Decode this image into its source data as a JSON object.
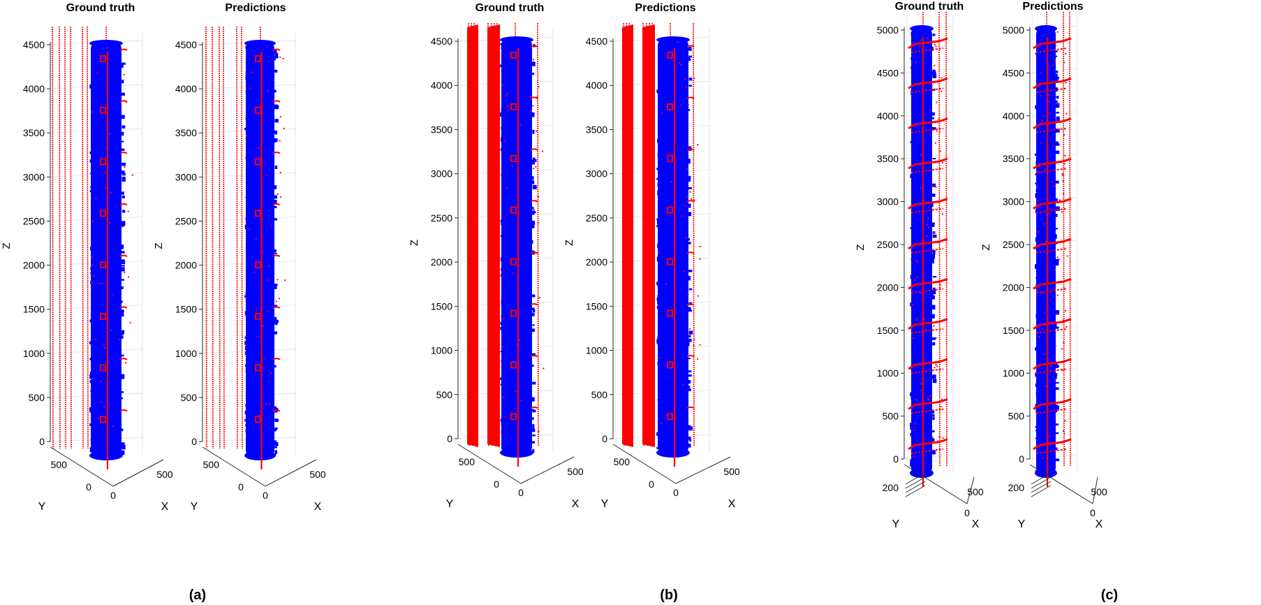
{
  "colors": {
    "background": "#ffffff",
    "column_points": "#0000ff",
    "edge_points": "#ff0000",
    "axis": "#262626",
    "grid": "#dcdcdc"
  },
  "chart_data": [
    {
      "type": "scatter3d",
      "group": "(a)",
      "title": "Ground truth",
      "xlabel": "X",
      "ylabel": "Y",
      "zlabel": "Z",
      "z_ticks": [
        0,
        500,
        1000,
        1500,
        2000,
        2500,
        3000,
        3500,
        4000,
        4500
      ],
      "x_ticks": [
        0,
        500
      ],
      "y_ticks": [
        0,
        500
      ],
      "zlim": [
        0,
        4600
      ],
      "series": [
        {
          "color": "blue"
        },
        {
          "color": "red"
        }
      ]
    },
    {
      "type": "scatter3d",
      "group": "(a)",
      "title": "Predictions",
      "xlabel": "X",
      "ylabel": "Y",
      "zlabel": "Z",
      "z_ticks": [
        0,
        500,
        1000,
        1500,
        2000,
        2500,
        3000,
        3500,
        4000,
        4500
      ],
      "x_ticks": [
        0,
        500
      ],
      "y_ticks": [
        0,
        500
      ],
      "zlim": [
        0,
        4600
      ],
      "series": [
        {
          "color": "blue"
        },
        {
          "color": "red"
        }
      ]
    },
    {
      "type": "scatter3d",
      "group": "(b)",
      "title": "Ground truth",
      "xlabel": "X",
      "ylabel": "Y",
      "zlabel": "Z",
      "z_ticks": [
        0,
        500,
        1000,
        1500,
        2000,
        2500,
        3000,
        3500,
        4000,
        4500
      ],
      "x_ticks": [
        0,
        500
      ],
      "y_ticks": [
        0,
        500
      ],
      "zlim": [
        0,
        4600
      ],
      "series": [
        {
          "color": "blue"
        },
        {
          "color": "red"
        }
      ]
    },
    {
      "type": "scatter3d",
      "group": "(b)",
      "title": "Predictions",
      "xlabel": "X",
      "ylabel": "Y",
      "zlabel": "Z",
      "z_ticks": [
        0,
        500,
        1000,
        1500,
        2000,
        2500,
        3000,
        3500,
        4000,
        4500
      ],
      "x_ticks": [
        0,
        500
      ],
      "y_ticks": [
        0,
        500
      ],
      "zlim": [
        0,
        4600
      ],
      "series": [
        {
          "color": "blue"
        },
        {
          "color": "red"
        }
      ]
    },
    {
      "type": "scatter3d",
      "group": "(c)",
      "title": "Ground truth",
      "xlabel": "X",
      "ylabel": "Y",
      "zlabel": "Z",
      "z_ticks": [
        0,
        500,
        1000,
        1500,
        2000,
        2500,
        3000,
        3500,
        4000,
        4500,
        5000
      ],
      "x_ticks": [
        0,
        500
      ],
      "y_ticks": [
        200
      ],
      "zlim": [
        0,
        5400
      ],
      "series": [
        {
          "color": "blue"
        },
        {
          "color": "red"
        }
      ]
    },
    {
      "type": "scatter3d",
      "group": "(c)",
      "title": "Predictions",
      "xlabel": "X",
      "ylabel": "Y",
      "zlabel": "Z",
      "z_ticks": [
        0,
        500,
        1000,
        1500,
        2000,
        2500,
        3000,
        3500,
        4000,
        4500,
        5000
      ],
      "x_ticks": [
        0,
        500
      ],
      "y_ticks": [
        200
      ],
      "zlim": [
        0,
        5400
      ],
      "series": [
        {
          "color": "blue"
        },
        {
          "color": "red"
        }
      ]
    }
  ],
  "captions": [
    "(a)",
    "(b)",
    "(c)"
  ]
}
